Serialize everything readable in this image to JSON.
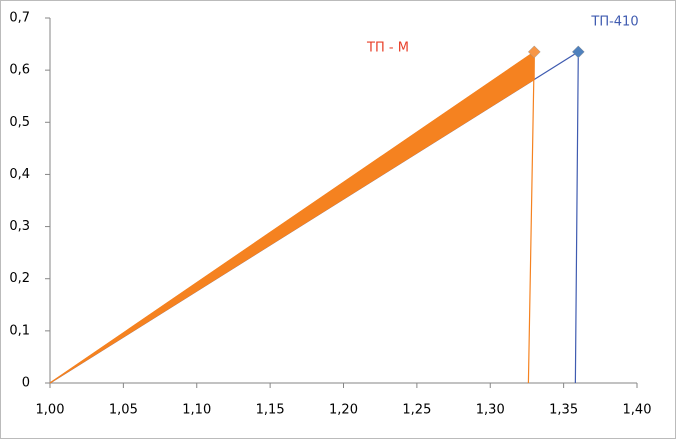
{
  "chart_data": {
    "type": "line",
    "series": [
      {
        "name": "ТП-410",
        "color": "#3f5bb0",
        "x": [
          1.0,
          1.36,
          1.358
        ],
        "values": [
          0,
          0.635,
          0
        ]
      },
      {
        "name": "ТП - М",
        "color": "#f58220",
        "x": [
          1.0,
          1.33,
          1.326
        ],
        "values": [
          0,
          0.635,
          0
        ],
        "fill": true
      }
    ],
    "xlim": [
      1.0,
      1.4
    ],
    "xticks": [
      {
        "value": 1.0,
        "label": "1,00"
      },
      {
        "value": 1.05,
        "label": "1,05"
      },
      {
        "value": 1.1,
        "label": "1,10"
      },
      {
        "value": 1.15,
        "label": "1,15"
      },
      {
        "value": 1.2,
        "label": "1,20"
      },
      {
        "value": 1.25,
        "label": "1,25"
      },
      {
        "value": 1.3,
        "label": "1,30"
      },
      {
        "value": 1.35,
        "label": "1,35"
      },
      {
        "value": 1.4,
        "label": "1,40"
      }
    ],
    "ylim": [
      0,
      0.7
    ],
    "yticks": [
      0,
      {
        "value": 0.1,
        "label": "0,1"
      },
      {
        "value": 0.2,
        "label": "0,2"
      },
      {
        "value": 0.3,
        "label": "0,3"
      },
      {
        "value": 0.4,
        "label": "0,4"
      },
      {
        "value": 0.5,
        "label": "0,5"
      },
      {
        "value": 0.6,
        "label": "0,6"
      },
      {
        "value": 0.7,
        "label": "0,7"
      }
    ],
    "grid": false
  }
}
